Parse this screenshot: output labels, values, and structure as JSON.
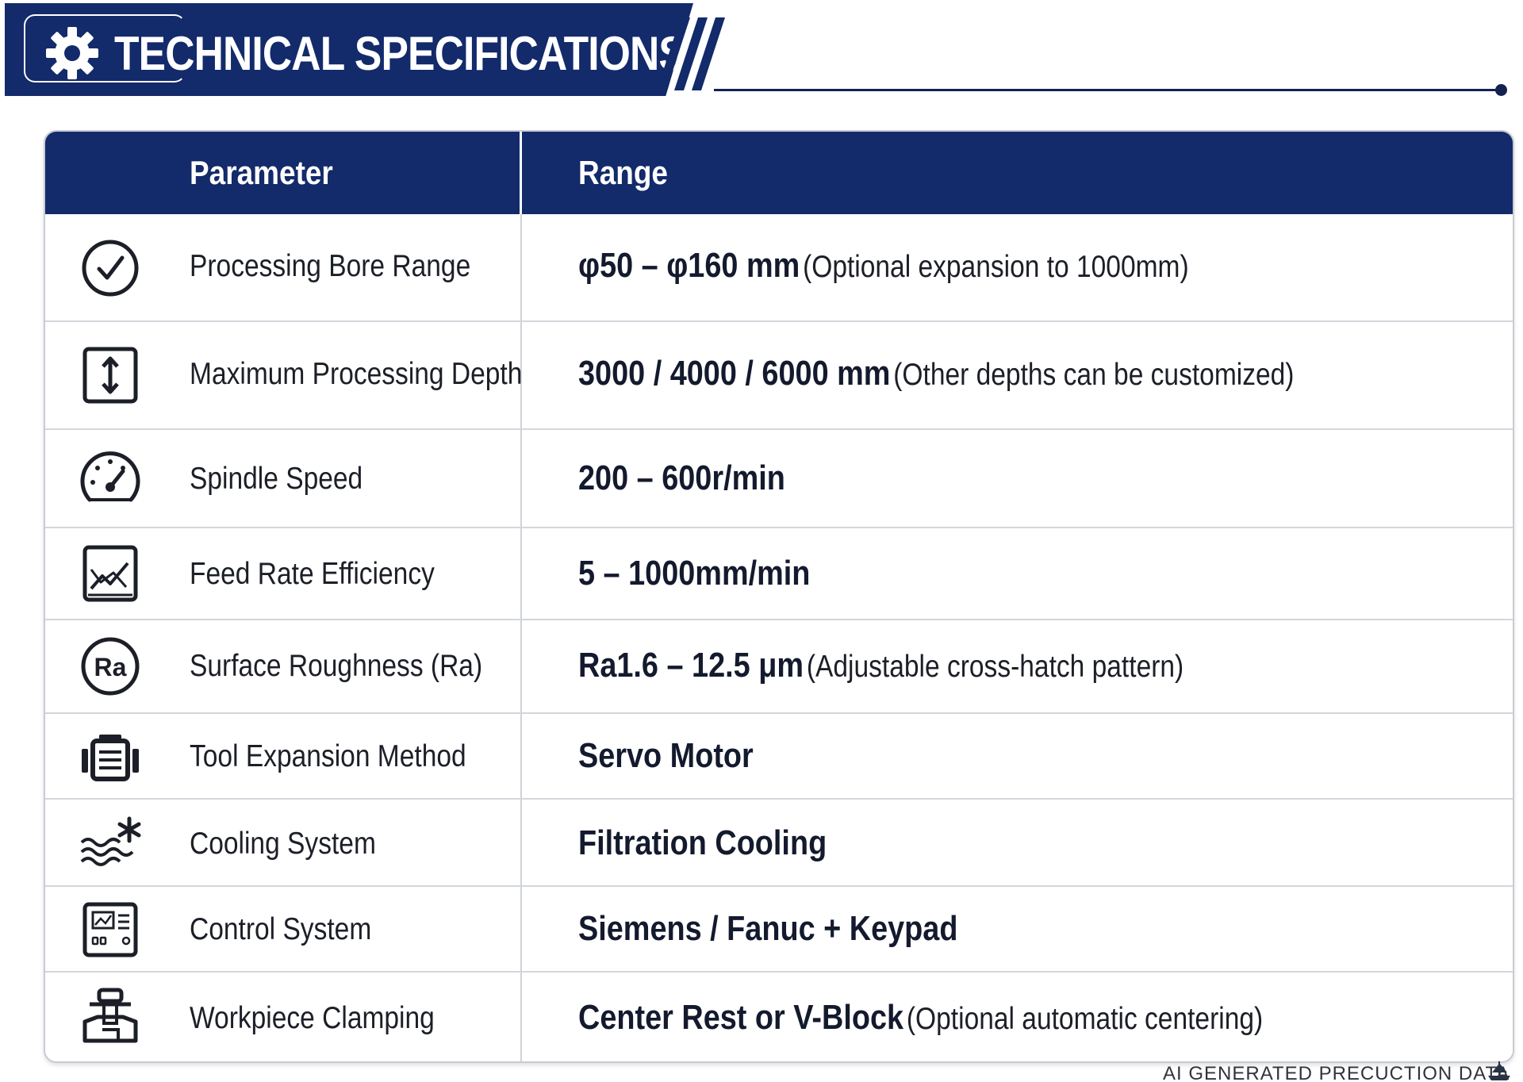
{
  "header": {
    "title": "TECHNICAL SPECIFICATIONS",
    "icon": "gear-icon",
    "brand_color": "#132a6b"
  },
  "table": {
    "columns": [
      "Parameter",
      "Range"
    ],
    "rows": [
      {
        "icon": "check-circle-icon",
        "parameter": "Processing Bore Range",
        "value": "φ50 – φ160 mm",
        "note": "(Optional expansion to 1000mm)"
      },
      {
        "icon": "vertical-arrow-icon",
        "parameter": "Maximum Processing Depth",
        "value": "3000 / 4000 / 6000 mm",
        "note": "(Other depths can be customized)"
      },
      {
        "icon": "speedometer-icon",
        "parameter": "Spindle Speed",
        "value": "200 – 600r/min",
        "note": ""
      },
      {
        "icon": "trend-chart-icon",
        "parameter": "Feed Rate Efficiency",
        "value": "5 – 1000mm/min",
        "note": ""
      },
      {
        "icon": "ra-roughness-icon",
        "parameter": "Surface Roughness (Ra)",
        "value": "Ra1.6 – 12.5 μm",
        "note": "(Adjustable cross-hatch pattern)"
      },
      {
        "icon": "servo-motor-icon",
        "parameter": "Tool Expansion Method",
        "value": "Servo Motor",
        "note": ""
      },
      {
        "icon": "cooling-waves-icon",
        "parameter": "Cooling System",
        "value": "Filtration Cooling",
        "note": ""
      },
      {
        "icon": "control-panel-icon",
        "parameter": "Control System",
        "value": "Siemens / Fanuc + Keypad",
        "note": ""
      },
      {
        "icon": "clamp-icon",
        "parameter": "Workpiece Clamping",
        "value": "Center Rest or V-Block",
        "note": "(Optional automatic centering)"
      }
    ]
  },
  "footer": {
    "note": "AI GENERATED PRECUCTION DATA",
    "logo_icon": "ship-logo-icon"
  }
}
